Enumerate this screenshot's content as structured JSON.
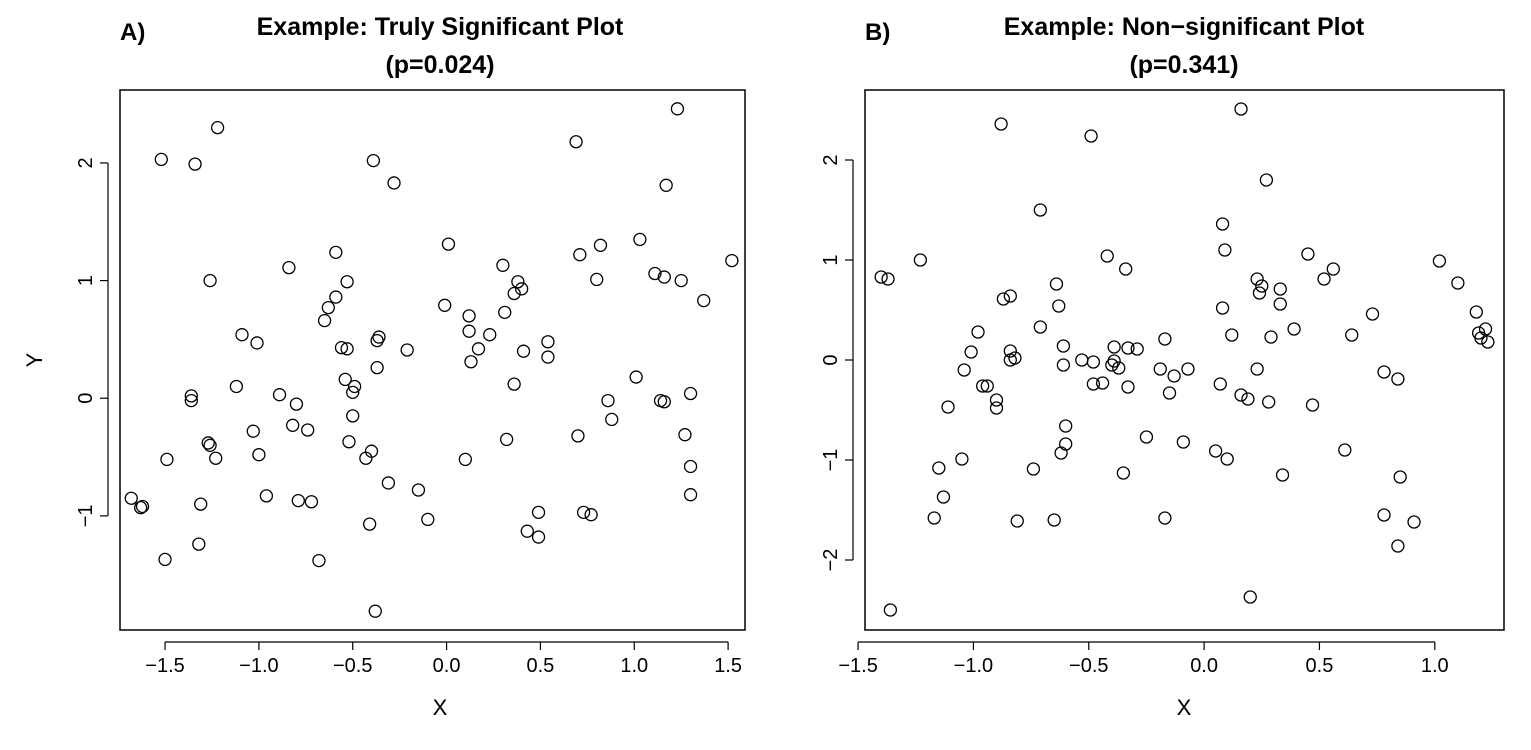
{
  "chart_data": [
    {
      "type": "scatter",
      "panel_label": "A)",
      "title": "Example: Truly Significant Plot",
      "subtitle": "(p=0.024)",
      "xlabel": "X",
      "ylabel": "Y",
      "xlim": [
        -1.74,
        1.59
      ],
      "ylim": [
        -1.97,
        2.62
      ],
      "xticks": [
        -1.5,
        -1.0,
        -0.5,
        0.0,
        0.5,
        1.0,
        1.5
      ],
      "xtick_labels": [
        "−1.5",
        "−1.0",
        "−0.5",
        "0.0",
        "0.5",
        "1.0",
        "1.5"
      ],
      "yticks": [
        -1,
        0,
        1,
        2
      ],
      "ytick_labels": [
        "−1",
        "0",
        "1",
        "2"
      ],
      "marker": "open-circle",
      "color": "#000000",
      "points": [
        [
          -1.22,
          2.3
        ],
        [
          -1.52,
          2.03
        ],
        [
          -1.34,
          1.99
        ],
        [
          -0.39,
          2.02
        ],
        [
          -0.28,
          1.83
        ],
        [
          0.01,
          1.31
        ],
        [
          0.69,
          2.18
        ],
        [
          1.23,
          2.46
        ],
        [
          1.17,
          1.81
        ],
        [
          0.71,
          1.22
        ],
        [
          1.03,
          1.35
        ],
        [
          0.82,
          1.3
        ],
        [
          0.3,
          1.13
        ],
        [
          1.52,
          1.17
        ],
        [
          1.11,
          1.06
        ],
        [
          1.16,
          1.03
        ],
        [
          1.25,
          1.0
        ],
        [
          0.8,
          1.01
        ],
        [
          1.37,
          0.83
        ],
        [
          0.38,
          0.99
        ],
        [
          0.4,
          0.93
        ],
        [
          0.36,
          0.89
        ],
        [
          -0.01,
          0.79
        ],
        [
          0.31,
          0.73
        ],
        [
          0.12,
          0.7
        ],
        [
          -0.59,
          1.24
        ],
        [
          -0.84,
          1.11
        ],
        [
          -1.26,
          1.0
        ],
        [
          -0.53,
          0.99
        ],
        [
          -0.59,
          0.86
        ],
        [
          -0.63,
          0.77
        ],
        [
          -0.65,
          0.66
        ],
        [
          -0.36,
          0.52
        ],
        [
          -0.37,
          0.49
        ],
        [
          -1.09,
          0.54
        ],
        [
          -1.01,
          0.47
        ],
        [
          -0.56,
          0.43
        ],
        [
          -0.53,
          0.42
        ],
        [
          -0.21,
          0.41
        ],
        [
          0.12,
          0.57
        ],
        [
          0.23,
          0.54
        ],
        [
          0.54,
          0.48
        ],
        [
          0.17,
          0.42
        ],
        [
          0.41,
          0.4
        ],
        [
          0.54,
          0.35
        ],
        [
          0.13,
          0.31
        ],
        [
          -0.37,
          0.26
        ],
        [
          1.01,
          0.18
        ],
        [
          -0.54,
          0.16
        ],
        [
          -1.12,
          0.1
        ],
        [
          -0.49,
          0.1
        ],
        [
          -0.5,
          0.05
        ],
        [
          -0.89,
          0.03
        ],
        [
          -0.8,
          -0.05
        ],
        [
          -1.36,
          0.02
        ],
        [
          -1.36,
          -0.02
        ],
        [
          0.36,
          0.12
        ],
        [
          1.14,
          -0.02
        ],
        [
          1.3,
          0.04
        ],
        [
          0.86,
          -0.02
        ],
        [
          1.16,
          -0.03
        ],
        [
          -0.5,
          -0.15
        ],
        [
          0.88,
          -0.18
        ],
        [
          -0.82,
          -0.23
        ],
        [
          -0.74,
          -0.27
        ],
        [
          -1.03,
          -0.28
        ],
        [
          1.27,
          -0.31
        ],
        [
          0.32,
          -0.35
        ],
        [
          -0.52,
          -0.37
        ],
        [
          0.7,
          -0.32
        ],
        [
          -1.27,
          -0.38
        ],
        [
          -1.26,
          -0.4
        ],
        [
          -0.4,
          -0.45
        ],
        [
          -1.0,
          -0.48
        ],
        [
          -1.23,
          -0.51
        ],
        [
          -0.43,
          -0.51
        ],
        [
          0.1,
          -0.52
        ],
        [
          -1.49,
          -0.52
        ],
        [
          1.3,
          -0.58
        ],
        [
          -0.31,
          -0.72
        ],
        [
          -0.15,
          -0.78
        ],
        [
          1.3,
          -0.82
        ],
        [
          -0.96,
          -0.83
        ],
        [
          -1.68,
          -0.85
        ],
        [
          -0.79,
          -0.87
        ],
        [
          -0.72,
          -0.88
        ],
        [
          -1.31,
          -0.9
        ],
        [
          -1.63,
          -0.93
        ],
        [
          -1.62,
          -0.92
        ],
        [
          0.49,
          -0.97
        ],
        [
          0.73,
          -0.97
        ],
        [
          0.77,
          -0.99
        ],
        [
          -0.1,
          -1.03
        ],
        [
          -0.41,
          -1.07
        ],
        [
          0.43,
          -1.13
        ],
        [
          0.49,
          -1.18
        ],
        [
          -1.32,
          -1.24
        ],
        [
          -1.5,
          -1.37
        ],
        [
          -0.68,
          -1.38
        ],
        [
          -0.38,
          -1.81
        ]
      ]
    },
    {
      "type": "scatter",
      "panel_label": "B)",
      "title": "Example: Non−significant Plot",
      "subtitle": "(p=0.341)",
      "xlabel": "X",
      "ylabel": "",
      "xlim": [
        -1.47,
        1.3
      ],
      "ylim": [
        -2.7,
        2.7
      ],
      "xticks": [
        -1.5,
        -1.0,
        -0.5,
        0.0,
        0.5,
        1.0
      ],
      "xtick_labels": [
        "−1.5",
        "−1.0",
        "−0.5",
        "0.0",
        "0.5",
        "1.0"
      ],
      "yticks": [
        -2,
        -1,
        0,
        1,
        2
      ],
      "ytick_labels": [
        "−2",
        "−1",
        "0",
        "1",
        "2"
      ],
      "marker": "open-circle",
      "color": "#000000",
      "points": [
        [
          0.16,
          2.51
        ],
        [
          -0.88,
          2.36
        ],
        [
          -0.49,
          2.24
        ],
        [
          0.27,
          1.8
        ],
        [
          -0.71,
          1.5
        ],
        [
          0.08,
          1.36
        ],
        [
          0.09,
          1.1
        ],
        [
          -1.23,
          1.0
        ],
        [
          1.02,
          0.99
        ],
        [
          -0.42,
          1.04
        ],
        [
          0.45,
          1.06
        ],
        [
          0.56,
          0.91
        ],
        [
          -0.34,
          0.91
        ],
        [
          -1.4,
          0.83
        ],
        [
          -1.37,
          0.81
        ],
        [
          0.52,
          0.81
        ],
        [
          0.23,
          0.81
        ],
        [
          1.1,
          0.77
        ],
        [
          -0.64,
          0.76
        ],
        [
          0.25,
          0.74
        ],
        [
          0.33,
          0.71
        ],
        [
          0.24,
          0.67
        ],
        [
          -0.84,
          0.64
        ],
        [
          -0.87,
          0.61
        ],
        [
          0.33,
          0.56
        ],
        [
          -0.63,
          0.54
        ],
        [
          0.08,
          0.52
        ],
        [
          1.18,
          0.48
        ],
        [
          0.73,
          0.46
        ],
        [
          -0.71,
          0.33
        ],
        [
          0.39,
          0.31
        ],
        [
          1.22,
          0.31
        ],
        [
          0.12,
          0.25
        ],
        [
          0.29,
          0.23
        ],
        [
          1.19,
          0.27
        ],
        [
          -0.98,
          0.28
        ],
        [
          1.2,
          0.22
        ],
        [
          0.64,
          0.25
        ],
        [
          1.23,
          0.18
        ],
        [
          -0.17,
          0.21
        ],
        [
          -0.61,
          0.14
        ],
        [
          -0.39,
          0.13
        ],
        [
          -0.33,
          0.12
        ],
        [
          -0.29,
          0.11
        ],
        [
          -1.01,
          0.08
        ],
        [
          -0.84,
          0.09
        ],
        [
          -0.82,
          0.02
        ],
        [
          -0.84,
          0.0
        ],
        [
          -0.53,
          0.0
        ],
        [
          -0.48,
          -0.02
        ],
        [
          -0.39,
          -0.01
        ],
        [
          -0.4,
          -0.05
        ],
        [
          -0.61,
          -0.05
        ],
        [
          -0.37,
          -0.08
        ],
        [
          -0.19,
          -0.09
        ],
        [
          -0.07,
          -0.09
        ],
        [
          0.23,
          -0.09
        ],
        [
          -1.04,
          -0.1
        ],
        [
          -0.13,
          -0.16
        ],
        [
          0.78,
          -0.12
        ],
        [
          -0.94,
          -0.26
        ],
        [
          -0.96,
          -0.26
        ],
        [
          -0.48,
          -0.24
        ],
        [
          -0.44,
          -0.23
        ],
        [
          -0.33,
          -0.27
        ],
        [
          0.07,
          -0.24
        ],
        [
          0.84,
          -0.19
        ],
        [
          -0.15,
          -0.33
        ],
        [
          0.16,
          -0.35
        ],
        [
          0.19,
          -0.39
        ],
        [
          -0.9,
          -0.4
        ],
        [
          0.28,
          -0.42
        ],
        [
          0.47,
          -0.45
        ],
        [
          -1.11,
          -0.47
        ],
        [
          -0.9,
          -0.48
        ],
        [
          -0.6,
          -0.66
        ],
        [
          -0.25,
          -0.77
        ],
        [
          -0.6,
          -0.84
        ],
        [
          -0.09,
          -0.82
        ],
        [
          0.05,
          -0.91
        ],
        [
          0.61,
          -0.9
        ],
        [
          -0.62,
          -0.93
        ],
        [
          0.1,
          -0.99
        ],
        [
          -1.05,
          -0.99
        ],
        [
          -1.15,
          -1.08
        ],
        [
          -0.74,
          -1.09
        ],
        [
          -0.35,
          -1.13
        ],
        [
          0.34,
          -1.15
        ],
        [
          0.85,
          -1.17
        ],
        [
          -1.13,
          -1.37
        ],
        [
          0.78,
          -1.55
        ],
        [
          -1.17,
          -1.58
        ],
        [
          -0.17,
          -1.58
        ],
        [
          -0.65,
          -1.6
        ],
        [
          -0.81,
          -1.61
        ],
        [
          0.91,
          -1.62
        ],
        [
          0.84,
          -1.86
        ],
        [
          0.2,
          -2.37
        ],
        [
          -1.36,
          -2.5
        ]
      ]
    }
  ]
}
